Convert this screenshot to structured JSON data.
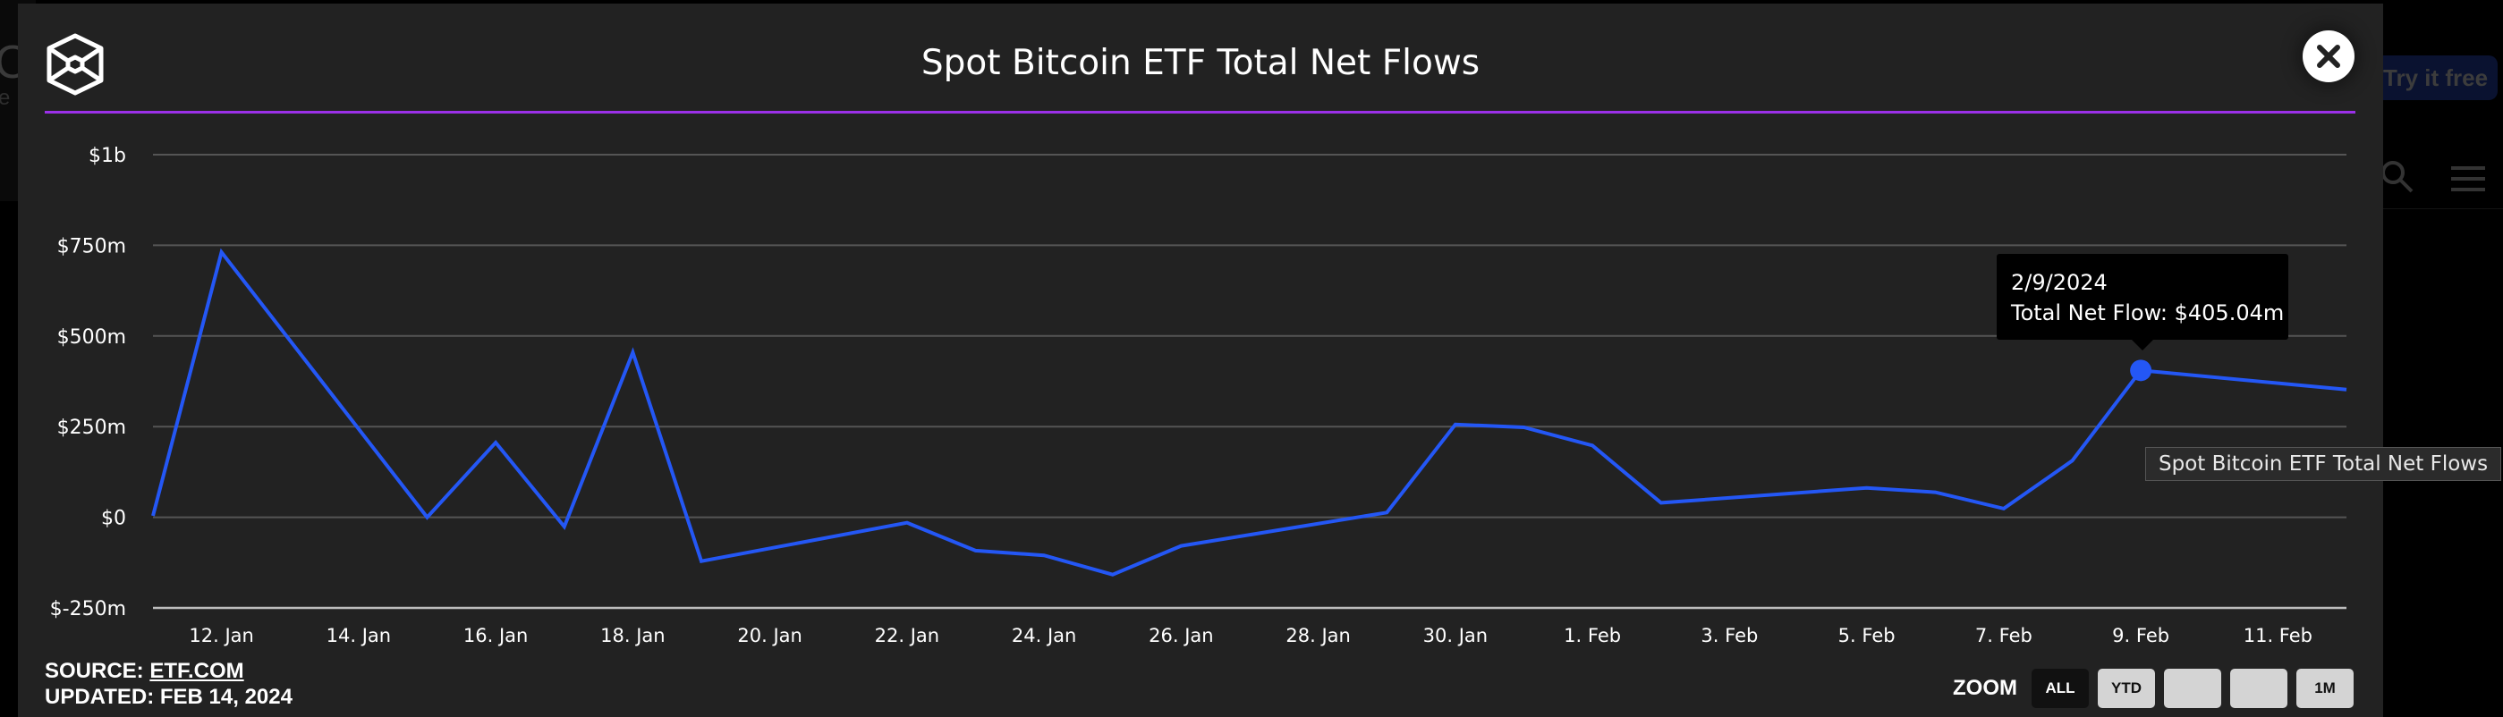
{
  "background": {
    "brand_fragment": "C",
    "sub_fragment": "e",
    "try_button": "Try it free"
  },
  "modal": {
    "title": "Spot Bitcoin ETF Total Net Flows",
    "accent_color": "#9b30e8",
    "close_label": "close",
    "source_label": "SOURCE: ",
    "source_link": "ETF.COM",
    "updated": "UPDATED: FEB 14, 2024",
    "zoom_label": "ZOOM",
    "zoom_buttons": [
      {
        "label": "ALL",
        "active": true
      },
      {
        "label": "YTD",
        "active": false
      },
      {
        "label": "",
        "active": false
      },
      {
        "label": "",
        "active": false
      },
      {
        "label": "1M",
        "active": false
      }
    ],
    "tooltip": {
      "date": "2/9/2024",
      "value_line": "Total Net Flow: $405.04m"
    },
    "series_hover_label": "Spot Bitcoin ETF Total Net Flows"
  },
  "chart_data": {
    "type": "line",
    "title": "Spot Bitcoin ETF Total Net Flows",
    "xlabel": "",
    "ylabel": "",
    "line_color": "#2457f5",
    "ylim": [
      -250,
      1000
    ],
    "y_ticks": [
      {
        "value": 1000,
        "label": "$1b"
      },
      {
        "value": 750,
        "label": "$750m"
      },
      {
        "value": 500,
        "label": "$500m"
      },
      {
        "value": 250,
        "label": "$250m"
      },
      {
        "value": 0,
        "label": "$0"
      },
      {
        "value": -250,
        "label": "$-250m"
      }
    ],
    "x_range_days": [
      "2024-01-11",
      "2024-02-12"
    ],
    "x_ticks": [
      {
        "date": "2024-01-12",
        "label": "12. Jan"
      },
      {
        "date": "2024-01-14",
        "label": "14. Jan"
      },
      {
        "date": "2024-01-16",
        "label": "16. Jan"
      },
      {
        "date": "2024-01-18",
        "label": "18. Jan"
      },
      {
        "date": "2024-01-20",
        "label": "20. Jan"
      },
      {
        "date": "2024-01-22",
        "label": "22. Jan"
      },
      {
        "date": "2024-01-24",
        "label": "24. Jan"
      },
      {
        "date": "2024-01-26",
        "label": "26. Jan"
      },
      {
        "date": "2024-01-28",
        "label": "28. Jan"
      },
      {
        "date": "2024-01-30",
        "label": "30. Jan"
      },
      {
        "date": "2024-02-01",
        "label": "1. Feb"
      },
      {
        "date": "2024-02-03",
        "label": "3. Feb"
      },
      {
        "date": "2024-02-05",
        "label": "5. Feb"
      },
      {
        "date": "2024-02-07",
        "label": "7. Feb"
      },
      {
        "date": "2024-02-09",
        "label": "9. Feb"
      },
      {
        "date": "2024-02-11",
        "label": "11. Feb"
      }
    ],
    "series": [
      {
        "name": "Spot Bitcoin ETF Total Net Flows",
        "unit": "$m",
        "points": [
          {
            "date": "2024-01-11",
            "value": 4
          },
          {
            "date": "2024-01-12",
            "value": 731
          },
          {
            "date": "2024-01-15",
            "value": 0
          },
          {
            "date": "2024-01-16",
            "value": 206
          },
          {
            "date": "2024-01-17",
            "value": -26
          },
          {
            "date": "2024-01-18",
            "value": 455
          },
          {
            "date": "2024-01-19",
            "value": -121
          },
          {
            "date": "2024-01-22",
            "value": -15
          },
          {
            "date": "2024-01-23",
            "value": -92
          },
          {
            "date": "2024-01-24",
            "value": -105
          },
          {
            "date": "2024-01-25",
            "value": -158
          },
          {
            "date": "2024-01-26",
            "value": -79
          },
          {
            "date": "2024-01-29",
            "value": 13
          },
          {
            "date": "2024-01-30",
            "value": 256
          },
          {
            "date": "2024-01-31",
            "value": 248
          },
          {
            "date": "2024-02-01",
            "value": 198
          },
          {
            "date": "2024-02-02",
            "value": 40
          },
          {
            "date": "2024-02-05",
            "value": 81
          },
          {
            "date": "2024-02-06",
            "value": 69
          },
          {
            "date": "2024-02-07",
            "value": 24
          },
          {
            "date": "2024-02-08",
            "value": 156
          },
          {
            "date": "2024-02-09",
            "value": 405.04
          },
          {
            "date": "2024-02-12",
            "value": 352
          }
        ]
      }
    ],
    "highlighted_point": {
      "date": "2024-02-09",
      "value": 405.04
    },
    "grid": true,
    "legend": "none"
  }
}
